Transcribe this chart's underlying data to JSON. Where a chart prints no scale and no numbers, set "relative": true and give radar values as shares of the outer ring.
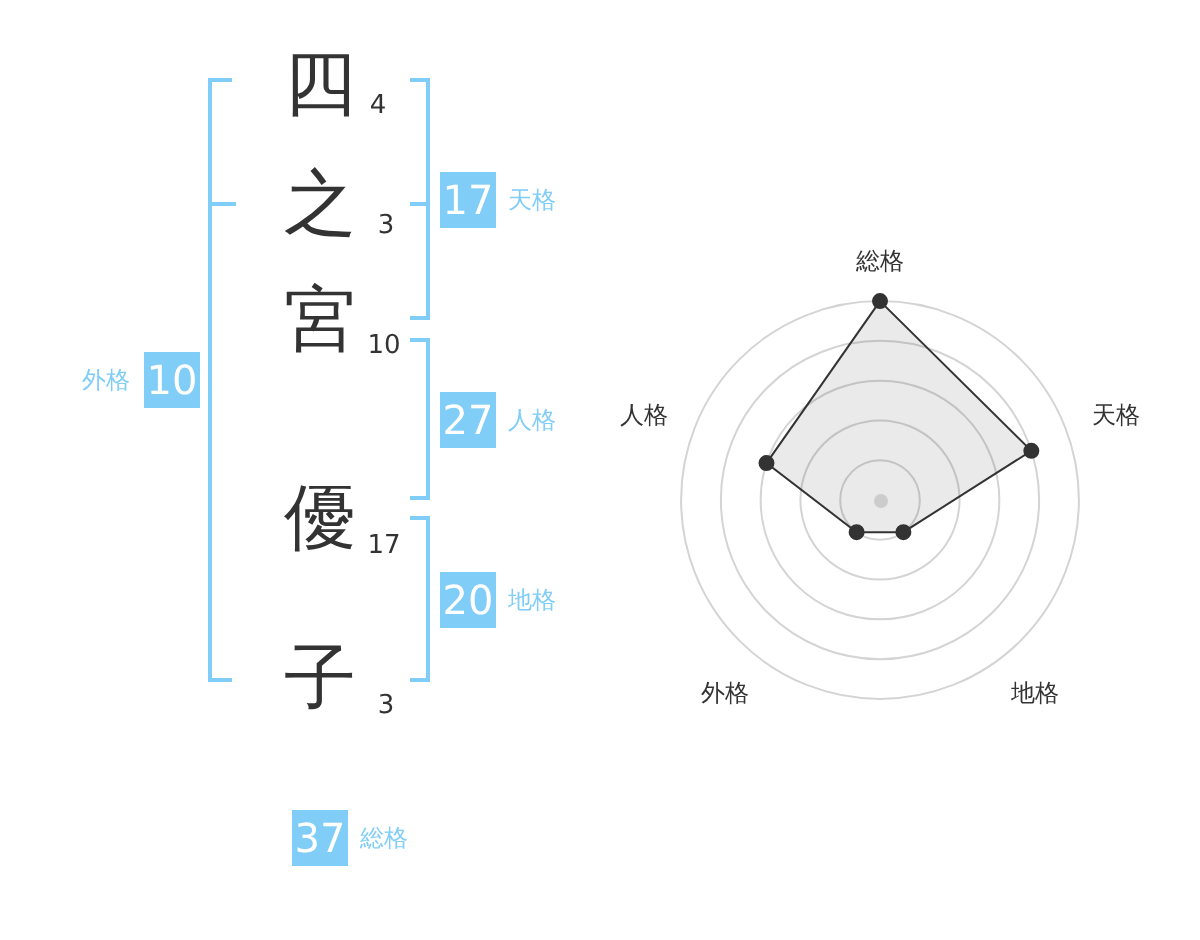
{
  "chart_data": [
    {
      "type": "other",
      "annotations": [
        "四",
        "4",
        "之",
        "3",
        "宮",
        "10",
        "優",
        "17",
        "子",
        "3",
        "17",
        "天格",
        "10",
        "外格",
        "27",
        "人格",
        "20",
        "地格",
        "37",
        "総格"
      ]
    },
    {
      "type": "radar",
      "categories": [
        "総格",
        "天格",
        "地格",
        "外格",
        "人格"
      ],
      "relative": true,
      "series": [
        {
          "color": "#333333",
          "values": [
            1,
            0.8,
            0.2,
            0.2,
            0.6
          ]
        }
      ],
      "grid": true,
      "marker": "circle"
    }
  ]
}
